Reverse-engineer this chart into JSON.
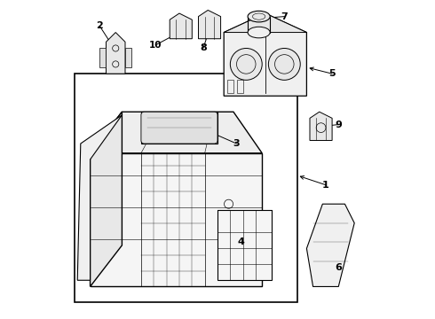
{
  "background_color": "#ffffff",
  "border_color": "#000000",
  "line_color": "#000000",
  "text_color": "#000000",
  "fig_width": 4.9,
  "fig_height": 3.6,
  "dpi": 100
}
